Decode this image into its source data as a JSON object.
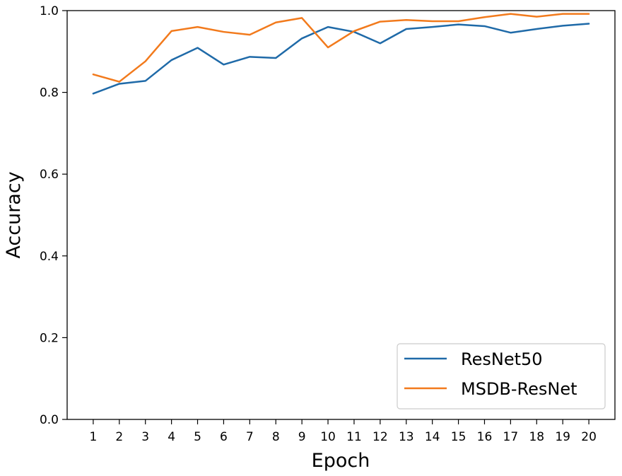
{
  "chart_data": {
    "type": "line",
    "title": "",
    "xlabel": "Epoch",
    "ylabel": "Accuracy",
    "x": [
      1,
      2,
      3,
      4,
      5,
      6,
      7,
      8,
      9,
      10,
      11,
      12,
      13,
      14,
      15,
      16,
      17,
      18,
      19,
      20
    ],
    "xlim": [
      0,
      21
    ],
    "ylim": [
      0.0,
      1.0
    ],
    "yticks": [
      "0.0",
      "0.2",
      "0.4",
      "0.6",
      "0.8",
      "1.0"
    ],
    "xticks": [
      "1",
      "2",
      "3",
      "4",
      "5",
      "6",
      "7",
      "8",
      "9",
      "10",
      "11",
      "12",
      "13",
      "14",
      "15",
      "16",
      "17",
      "18",
      "19",
      "20"
    ],
    "grid": false,
    "legend_position": "lower-right",
    "series": [
      {
        "name": "ResNet50",
        "color": "#1f6aa8",
        "values": [
          0.797,
          0.821,
          0.828,
          0.879,
          0.909,
          0.868,
          0.887,
          0.884,
          0.932,
          0.96,
          0.948,
          0.92,
          0.955,
          0.96,
          0.966,
          0.962,
          0.946,
          0.955,
          0.963,
          0.968
        ]
      },
      {
        "name": "MSDB-ResNet",
        "color": "#f27a1c",
        "values": [
          0.844,
          0.826,
          0.876,
          0.95,
          0.96,
          0.948,
          0.941,
          0.971,
          0.982,
          0.91,
          0.95,
          0.973,
          0.977,
          0.974,
          0.974,
          0.984,
          0.992,
          0.985,
          0.992,
          0.992
        ]
      }
    ]
  }
}
